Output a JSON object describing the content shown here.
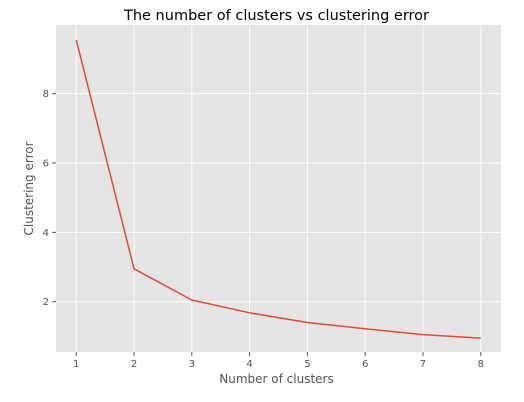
{
  "chart_data": {
    "type": "line",
    "title": "The number of clusters vs clustering error",
    "xlabel": "Number of clusters",
    "ylabel": "Clustering error",
    "x": [
      1,
      2,
      3,
      4,
      5,
      6,
      7,
      8
    ],
    "series": [
      {
        "values": [
          9.55,
          2.95,
          2.05,
          1.68,
          1.4,
          1.22,
          1.05,
          0.95
        ],
        "color": "#E24A33"
      }
    ],
    "xlim": [
      0.65,
      8.35
    ],
    "ylim": [
      0.55,
      9.98
    ],
    "xticks": [
      1,
      2,
      3,
      4,
      5,
      6,
      7,
      8
    ],
    "yticks": [
      2,
      4,
      6,
      8
    ],
    "grid": true,
    "background": "#E5E5E5"
  }
}
